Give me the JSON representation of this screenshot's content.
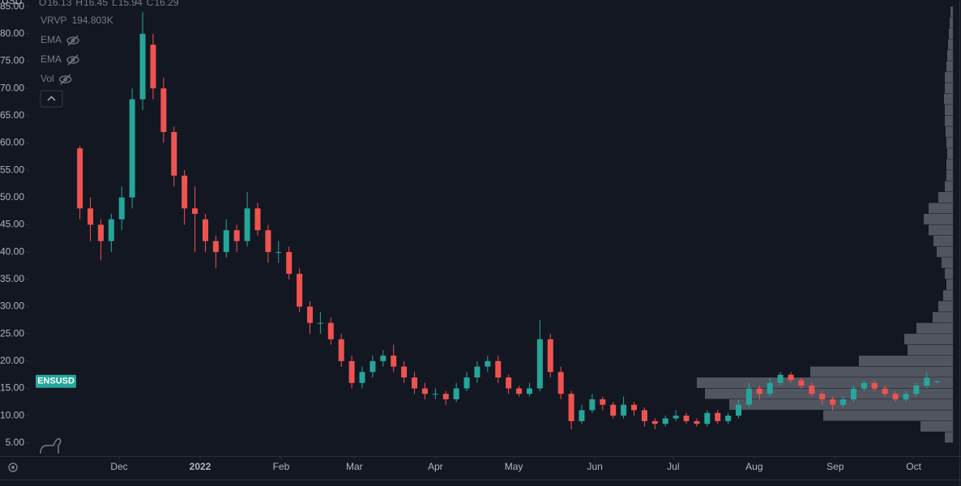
{
  "chart_data": {
    "type": "candlestick",
    "currency": "USD",
    "symbol": "ENSUSD",
    "up_color": "#26a69a",
    "down_color": "#ef5350",
    "categories": [
      null,
      null,
      null,
      null,
      null,
      null,
      null,
      null,
      null,
      null,
      null,
      null,
      null,
      null,
      null,
      null,
      null,
      null,
      null,
      null,
      null,
      null,
      null,
      null,
      null,
      null,
      null,
      null,
      null,
      null,
      null,
      null,
      null,
      null,
      null,
      null,
      null,
      null,
      null,
      null,
      null,
      null,
      null,
      null,
      null,
      null,
      null,
      null,
      null,
      null,
      null,
      null,
      null,
      null,
      null,
      null,
      null,
      null,
      null,
      null,
      null,
      null,
      null,
      null,
      null,
      null,
      null,
      null,
      null,
      null,
      null,
      null,
      null,
      null,
      null,
      null,
      null,
      null,
      null,
      null,
      null,
      null,
      null
    ],
    "open": [
      59,
      48,
      45,
      42,
      46,
      50,
      68,
      78,
      70,
      62,
      54,
      48,
      46,
      42,
      40,
      44,
      42,
      48,
      44,
      40,
      40,
      36,
      30,
      27,
      27,
      24,
      20,
      16,
      18,
      20,
      21,
      19,
      17,
      15,
      14,
      14,
      13,
      15,
      17,
      19,
      20,
      17,
      15,
      14,
      15,
      24,
      18,
      14,
      9,
      11,
      13,
      12,
      10,
      12,
      11,
      9,
      8.5,
      9.5,
      10,
      9,
      8.5,
      10.5,
      9,
      10,
      12,
      15,
      14,
      16,
      17.5,
      16.5,
      15.5,
      14,
      13,
      12,
      13,
      15,
      16,
      15,
      14,
      13,
      14,
      15.5,
      16.13
    ],
    "high": [
      59.5,
      50,
      46,
      47,
      52,
      70,
      84,
      80,
      72,
      63,
      55,
      52,
      47,
      43,
      46,
      45,
      51,
      49,
      45,
      42,
      41,
      37,
      31,
      29,
      28,
      25,
      21,
      19,
      21,
      22,
      23,
      20,
      18,
      16,
      15,
      14.5,
      16,
      18,
      20,
      21,
      21,
      17.5,
      15.5,
      16,
      27.5,
      25,
      19,
      14.5,
      12,
      14,
      13.5,
      12.5,
      13.5,
      12.5,
      11.5,
      9.5,
      10,
      11,
      10.5,
      9.5,
      11,
      11,
      10.5,
      13,
      16,
      15.5,
      17,
      18,
      18,
      17,
      16,
      14.5,
      13.5,
      13.5,
      15.5,
      16.5,
      16.5,
      15.5,
      14.5,
      14.5,
      16,
      18,
      16.45
    ],
    "low": [
      46,
      42,
      38.5,
      40,
      44,
      48,
      66,
      68,
      60,
      52,
      45,
      40,
      40,
      37,
      39,
      40,
      41,
      43,
      38,
      38,
      35,
      29,
      25,
      25,
      23,
      19,
      15,
      15,
      17,
      19,
      18,
      16,
      14,
      13,
      13,
      12,
      12.5,
      14.5,
      16,
      18,
      16,
      14,
      13.5,
      13.5,
      14.5,
      17,
      13,
      7.5,
      8.5,
      10.5,
      11,
      9.5,
      9.5,
      10,
      8,
      7.5,
      8,
      9,
      8.5,
      8,
      8,
      8.5,
      8.5,
      9.5,
      11.5,
      13,
      13.5,
      15.5,
      16,
      15,
      13.5,
      12,
      11,
      11.5,
      12.5,
      14.5,
      14.5,
      13.5,
      12.5,
      12.5,
      13.5,
      15,
      15.94
    ],
    "close": [
      48,
      45,
      42,
      46,
      50,
      68,
      80,
      70,
      62,
      54,
      48,
      47,
      42,
      40,
      44,
      42,
      48,
      44,
      40,
      40,
      36,
      30,
      27,
      27,
      24,
      20,
      16,
      18,
      20,
      21,
      19,
      17,
      15,
      14,
      14,
      13,
      15,
      17,
      19,
      20,
      17,
      15,
      14,
      15,
      24,
      18,
      14,
      9,
      11,
      13,
      12,
      10,
      12,
      11,
      9,
      8.5,
      9.5,
      10,
      9,
      8.5,
      10.5,
      9,
      10,
      12,
      15,
      14,
      16,
      17.5,
      16.5,
      15.5,
      14,
      13,
      12,
      13,
      15,
      16,
      15,
      14,
      13,
      14,
      15.5,
      17,
      16.29
    ],
    "xlim": [
      -4.7,
      83.5
    ],
    "xticks": [
      {
        "value": 3.75,
        "label": "Dec"
      },
      {
        "value": 11.5,
        "label": "2022"
      },
      {
        "value": 19.25,
        "label": "Feb"
      },
      {
        "value": 26.25,
        "label": "Mar"
      },
      {
        "value": 34,
        "label": "Apr"
      },
      {
        "value": 41.5,
        "label": "May"
      },
      {
        "value": 49.25,
        "label": "Jun"
      },
      {
        "value": 56.75,
        "label": "Jul"
      },
      {
        "value": 64.5,
        "label": "Aug"
      },
      {
        "value": 72.25,
        "label": "Sep"
      },
      {
        "value": 79.75,
        "label": "Oct"
      }
    ],
    "ylim": [
      2.6,
      86.2
    ],
    "yticks": [
      {
        "value": 5,
        "label": "5.00"
      },
      {
        "value": 10,
        "label": "10.00"
      },
      {
        "value": 15,
        "label": "15.00"
      },
      {
        "value": 20,
        "label": "20.00"
      },
      {
        "value": 25,
        "label": "25.00"
      },
      {
        "value": 30,
        "label": "30.00"
      },
      {
        "value": 35,
        "label": "35.00"
      },
      {
        "value": 40,
        "label": "40.00"
      },
      {
        "value": 45,
        "label": "45.00"
      },
      {
        "value": 50,
        "label": "50.00"
      },
      {
        "value": 55,
        "label": "55.00"
      },
      {
        "value": 60,
        "label": "60.00"
      },
      {
        "value": 65,
        "label": "65.00"
      },
      {
        "value": 70,
        "label": "70.00"
      },
      {
        "value": 75,
        "label": "75.00"
      },
      {
        "value": 80,
        "label": "80.00"
      },
      {
        "value": 85,
        "label": "85.00"
      }
    ],
    "volume_profile": {
      "color": "#5d606b",
      "bins": [
        5,
        7,
        9,
        11,
        13,
        15,
        17,
        19,
        21,
        23,
        25,
        27,
        29,
        31,
        33,
        35,
        37,
        39,
        41,
        43,
        45,
        47,
        49,
        51,
        53,
        55,
        57,
        59,
        61,
        63,
        65,
        67,
        69,
        71,
        73,
        75,
        77,
        79,
        81,
        83,
        85
      ],
      "volumes": [
        10,
        40,
        160,
        276,
        306,
        316,
        176,
        116,
        56,
        60,
        45,
        25,
        18,
        12,
        8,
        10,
        14,
        20,
        24,
        30,
        36,
        30,
        18,
        10,
        8,
        8,
        7,
        8,
        9,
        10,
        10,
        11,
        10,
        10,
        8,
        7,
        6,
        5,
        4,
        3
      ]
    }
  },
  "ui": {
    "ohlc": [
      {
        "label": "O",
        "value": 16.13
      },
      {
        "label": "H",
        "value": 16.45
      },
      {
        "label": "L",
        "value": 15.94
      },
      {
        "label": "C",
        "value": 16.29
      }
    ],
    "indicators": [
      {
        "name": "VRVP",
        "value": "194.803K"
      },
      {
        "name": "EMA"
      },
      {
        "name": "EMA"
      },
      {
        "name": "Vol"
      }
    ]
  }
}
